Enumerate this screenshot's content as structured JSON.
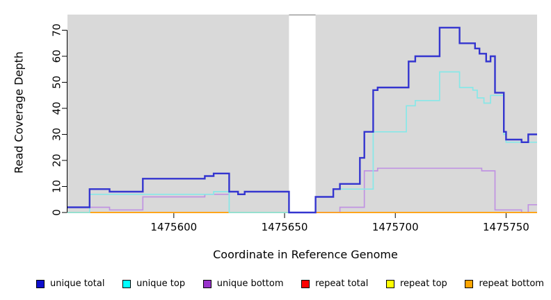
{
  "figure": {
    "x_axis_label": "Coordinate in Reference Genome",
    "y_axis_label": "Read Coverage Depth"
  },
  "chart_data": {
    "type": "line",
    "subtype": "step-after read coverage plot",
    "title": "",
    "xlabel": "Coordinate in Reference Genome",
    "ylabel": "Read Coverage Depth",
    "xlim": [
      1475552,
      1475764
    ],
    "ylim": [
      0,
      76
    ],
    "xticks": [
      1475600,
      1475650,
      1475700,
      1475750
    ],
    "yticks": [
      0,
      10,
      20,
      30,
      40,
      50,
      60,
      70
    ],
    "grid": false,
    "legend_position": "bottom",
    "panel_bg": "#d9d9d9",
    "gap_region": {
      "x_start": 1475652,
      "x_end": 1475664,
      "top_edge_color": "#9a9a9a"
    },
    "axis_color": "#000000",
    "series": [
      {
        "name": "unique total",
        "line_color": "#3435cf",
        "swatch_color": "#0e0ecd",
        "width": 2.4,
        "points": [
          [
            1475552,
            2
          ],
          [
            1475562,
            9
          ],
          [
            1475571,
            8
          ],
          [
            1475586,
            13
          ],
          [
            1475614,
            14
          ],
          [
            1475618,
            15
          ],
          [
            1475625,
            8
          ],
          [
            1475629,
            7
          ],
          [
            1475632,
            8
          ],
          [
            1475652,
            0
          ],
          [
            1475664,
            6
          ],
          [
            1475672,
            9
          ],
          [
            1475675,
            11
          ],
          [
            1475684,
            21
          ],
          [
            1475686,
            31
          ],
          [
            1475690,
            47
          ],
          [
            1475692,
            48
          ],
          [
            1475706,
            58
          ],
          [
            1475709,
            60
          ],
          [
            1475720,
            71
          ],
          [
            1475729,
            65
          ],
          [
            1475736,
            63
          ],
          [
            1475738,
            61
          ],
          [
            1475741,
            58
          ],
          [
            1475743,
            60
          ],
          [
            1475745,
            46
          ],
          [
            1475749,
            31
          ],
          [
            1475750,
            28
          ],
          [
            1475757,
            27
          ],
          [
            1475760,
            30
          ],
          [
            1475764,
            30
          ]
        ]
      },
      {
        "name": "unique top",
        "line_color": "#87e8e8",
        "swatch_color": "#00ffff",
        "width": 1.7,
        "points": [
          [
            1475552,
            0
          ],
          [
            1475562,
            7
          ],
          [
            1475618,
            8
          ],
          [
            1475625,
            0
          ],
          [
            1475664,
            6
          ],
          [
            1475672,
            9
          ],
          [
            1475690,
            31
          ],
          [
            1475705,
            41
          ],
          [
            1475709,
            43
          ],
          [
            1475720,
            54
          ],
          [
            1475729,
            48
          ],
          [
            1475735,
            47
          ],
          [
            1475737,
            44
          ],
          [
            1475740,
            42
          ],
          [
            1475743,
            45
          ],
          [
            1475749,
            30
          ],
          [
            1475750,
            27
          ],
          [
            1475764,
            27
          ]
        ]
      },
      {
        "name": "unique bottom",
        "line_color": "#c093e2",
        "swatch_color": "#9933cc",
        "width": 1.7,
        "points": [
          [
            1475552,
            2
          ],
          [
            1475571,
            1
          ],
          [
            1475586,
            6
          ],
          [
            1475614,
            7
          ],
          [
            1475625,
            8
          ],
          [
            1475629,
            7
          ],
          [
            1475632,
            8
          ],
          [
            1475652,
            0
          ],
          [
            1475675,
            2
          ],
          [
            1475686,
            16
          ],
          [
            1475692,
            17
          ],
          [
            1475739,
            16
          ],
          [
            1475745,
            1
          ],
          [
            1475757,
            0
          ],
          [
            1475760,
            3
          ],
          [
            1475764,
            3
          ]
        ]
      },
      {
        "name": "repeat total",
        "line_color": "#ff0000",
        "swatch_color": "#ff0000",
        "width": 1.4,
        "points": [
          [
            1475552,
            0
          ],
          [
            1475764,
            0
          ]
        ]
      },
      {
        "name": "repeat top",
        "line_color": "#ffff00",
        "swatch_color": "#ffff00",
        "width": 1.4,
        "points": [
          [
            1475552,
            0
          ],
          [
            1475764,
            0
          ]
        ]
      },
      {
        "name": "repeat bottom",
        "line_color": "#ffa217",
        "swatch_color": "#ffa500",
        "width": 1.7,
        "points": [
          [
            1475552,
            0
          ],
          [
            1475764,
            0
          ]
        ]
      }
    ],
    "draw_order": [
      3,
      4,
      2,
      5,
      1,
      0
    ]
  }
}
